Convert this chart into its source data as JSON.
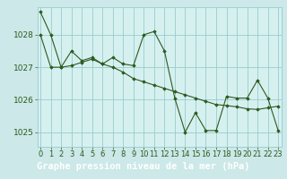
{
  "title": "Graphe pression niveau de la mer (hPa)",
  "background_color": "#cce8e8",
  "plot_bg_color": "#d6f0f0",
  "grid_color": "#99cccc",
  "line_color": "#2d5a1e",
  "marker_color": "#2d5a1e",
  "footer_bg": "#2d5a1e",
  "footer_text_color": "#ffffff",
  "xlim": [
    -0.3,
    23.3
  ],
  "ylim": [
    1024.55,
    1028.85
  ],
  "yticks": [
    1025,
    1026,
    1027,
    1028
  ],
  "xticks": [
    0,
    1,
    2,
    3,
    4,
    5,
    6,
    7,
    8,
    9,
    10,
    11,
    12,
    13,
    14,
    15,
    16,
    17,
    18,
    19,
    20,
    21,
    22,
    23
  ],
  "series1": [
    1028.7,
    1028.0,
    1027.0,
    1027.5,
    1027.2,
    1027.3,
    1027.1,
    1027.3,
    1027.1,
    1027.05,
    1028.0,
    1028.1,
    1027.5,
    1026.05,
    1025.0,
    1025.6,
    1025.05,
    1025.05,
    1026.1,
    1026.05,
    1026.05,
    1026.6,
    1026.05,
    1025.05
  ],
  "series2": [
    1028.0,
    1027.0,
    1027.0,
    1027.05,
    1027.15,
    1027.25,
    1027.1,
    1027.0,
    1026.85,
    1026.65,
    1026.55,
    1026.45,
    1026.35,
    1026.25,
    1026.15,
    1026.05,
    1025.95,
    1025.85,
    1025.82,
    1025.78,
    1025.72,
    1025.7,
    1025.75,
    1025.8
  ],
  "title_fontsize": 7.5,
  "tick_fontsize": 6.0,
  "ytick_fontsize": 6.5
}
